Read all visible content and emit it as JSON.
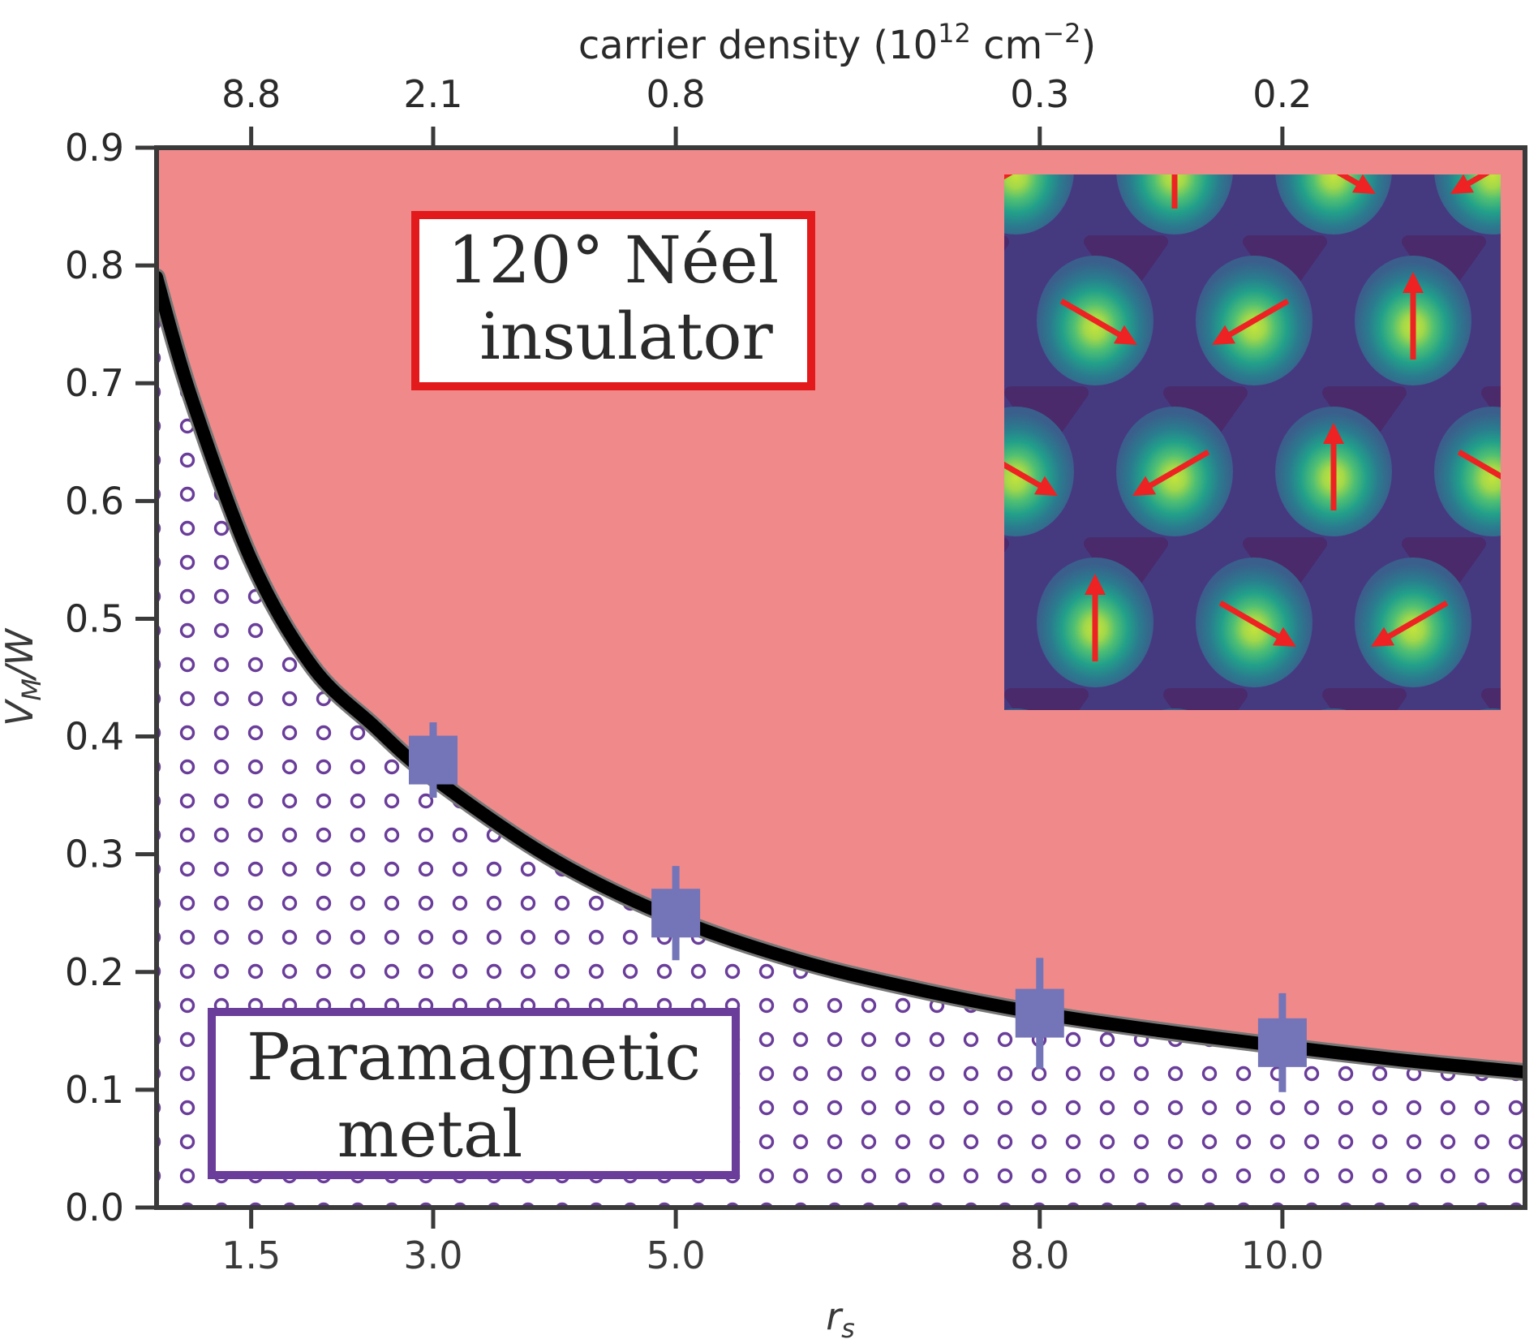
{
  "chart_data": {
    "type": "scatter",
    "xlabel": "r",
    "xlabel_sub": "s",
    "ylabel_main": "V",
    "ylabel_sub": "M",
    "ylabel_rest": "/W",
    "top_xlabel_prefix": "carrier density (10",
    "top_xlabel_exp1": "12",
    "top_xlabel_mid": " cm",
    "top_xlabel_exp2": "−2",
    "top_xlabel_suffix": ")",
    "xlim": [
      0.72,
      12.0
    ],
    "ylim": [
      0.0,
      0.9
    ],
    "x_ticks": [
      1.5,
      3.0,
      5.0,
      8.0,
      10.0
    ],
    "x_tick_labels": [
      "1.5",
      "3.0",
      "5.0",
      "8.0",
      "10.0"
    ],
    "y_ticks": [
      0.0,
      0.1,
      0.2,
      0.3,
      0.4,
      0.5,
      0.6,
      0.7,
      0.8,
      0.9
    ],
    "y_tick_labels": [
      "0.0",
      "0.1",
      "0.2",
      "0.3",
      "0.4",
      "0.5",
      "0.6",
      "0.7",
      "0.8",
      "0.9"
    ],
    "top_tick_labels": [
      "8.8",
      "2.1",
      "0.8",
      "0.3",
      "0.2"
    ],
    "boundary_curve": {
      "x": [
        0.72,
        1.0,
        1.5,
        2.0,
        2.5,
        3.0,
        4.0,
        5.0,
        6.0,
        7.0,
        8.0,
        9.0,
        10.0,
        11.0,
        12.0
      ],
      "y": [
        0.79,
        0.69,
        0.55,
        0.46,
        0.41,
        0.365,
        0.295,
        0.245,
        0.21,
        0.185,
        0.165,
        0.15,
        0.137,
        0.125,
        0.115
      ]
    },
    "series": [
      {
        "x": [
          3.0,
          5.0,
          8.0,
          10.0
        ],
        "y": [
          0.38,
          0.25,
          0.165,
          0.14
        ],
        "yerr": [
          0.032,
          0.04,
          0.047,
          0.042
        ]
      }
    ],
    "regions": {
      "upper_line1": "120° Néel",
      "upper_line2": "insulator",
      "lower_line1": "Paramagnetic",
      "lower_line2": "metal"
    },
    "colors": {
      "insulator_fill": "#f08a8a",
      "metal_circles": "#6a3d9a",
      "boundary": "#000000",
      "markers": "#7474b8",
      "insulator_box": "#e31a1c",
      "metal_box": "#6a3d9a",
      "inset_bg": "#453a80",
      "arrow": "#ee2222"
    },
    "inset": {
      "description_icon": "spin-density-map-icon",
      "spins_deg": [
        270,
        30,
        150,
        270,
        30,
        150,
        270,
        30,
        150
      ]
    },
    "grid": false
  }
}
